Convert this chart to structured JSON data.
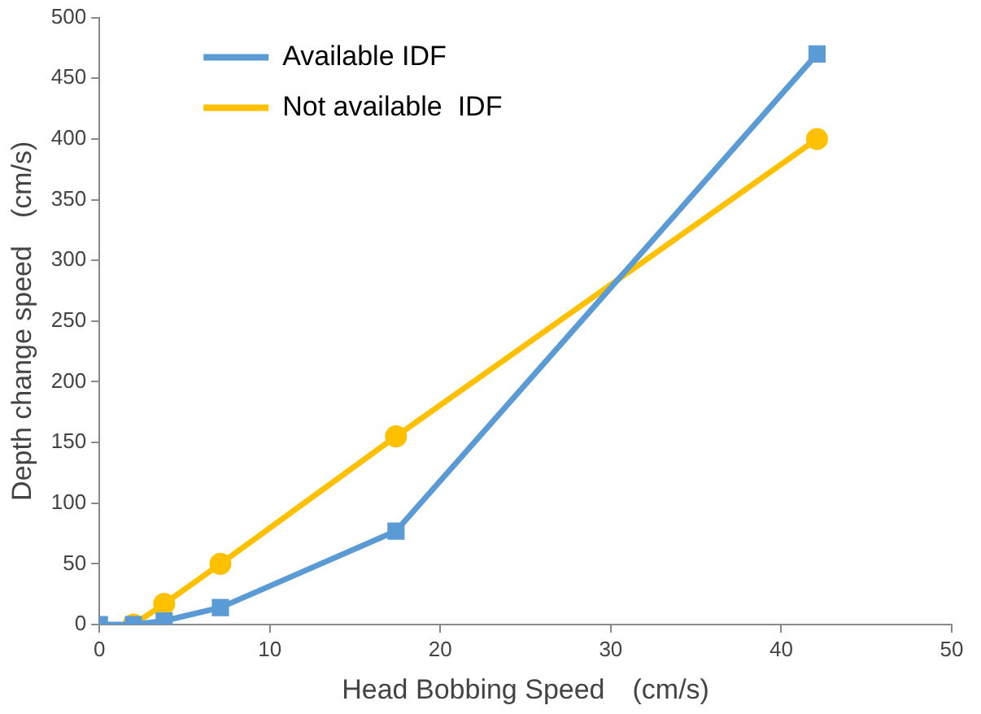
{
  "chart_data": {
    "type": "line",
    "xlabel": "Head Bobbing Speed　(cm/s)",
    "ylabel": "Depth change speed　(cm/s)",
    "series": [
      {
        "name": "Available IDF",
        "color": "#5b9bd5",
        "marker": "square",
        "x": [
          0,
          2,
          3.8,
          7.1,
          17.4,
          42.1
        ],
        "values": [
          0,
          0,
          3,
          14,
          77,
          470
        ]
      },
      {
        "name": "Not available  IDF",
        "color": "#ffc000",
        "marker": "circle",
        "x": [
          2,
          3.8,
          7.1,
          17.4,
          42.1
        ],
        "values": [
          0,
          17,
          50,
          155,
          400
        ]
      }
    ],
    "xlim": [
      0,
      50
    ],
    "xticks": [
      0,
      10,
      20,
      30,
      40,
      50
    ],
    "ylim": [
      0,
      500
    ],
    "yticks": [
      0,
      50,
      100,
      150,
      200,
      250,
      300,
      350,
      400,
      450,
      500
    ],
    "grid": false,
    "legend": "top left"
  }
}
